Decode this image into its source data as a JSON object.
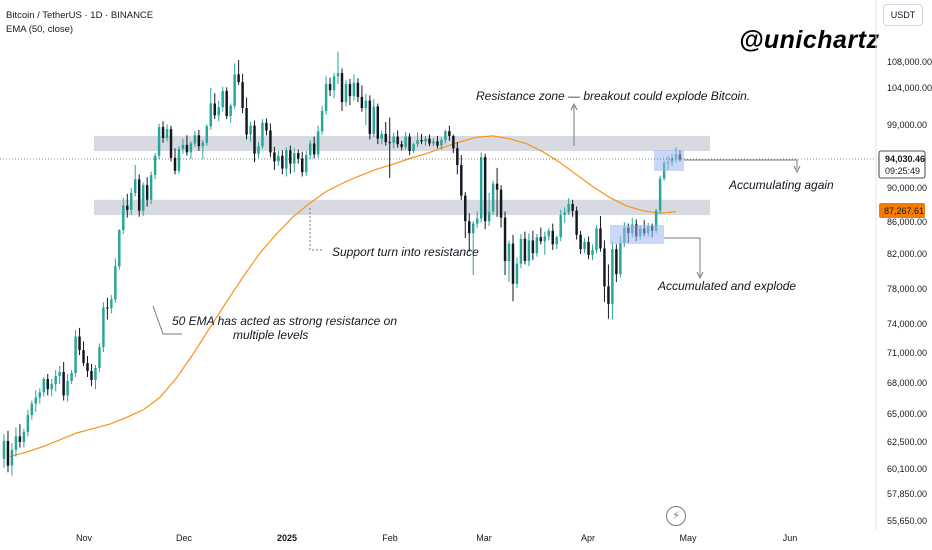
{
  "header": {
    "symbol_line": "Bitcoin / TetherUS · 1D · BINANCE",
    "indicator_line": "EMA (50, close)"
  },
  "watermark": "@unichartz",
  "currency_button": "USDT",
  "price_labels": {
    "last_price": "94,030.46",
    "countdown": "09:25:49",
    "ema_value": "87,267.61"
  },
  "colors": {
    "up": "#26a69a",
    "down": "#131722",
    "ema": "#f7931a",
    "zone": "#d1d4dc",
    "highlight_box": "#9fb6f2",
    "ema_label_bg": "#f57c00"
  },
  "annotations": {
    "resistance_zone": "Resistance zone — breakout could explode Bitcoin.",
    "accumulating_again": "Accumulating again",
    "support_turn": "Support turn into resistance",
    "ema_note_line1": "50 EMA has acted as strong resistance on",
    "ema_note_line2": "multiple levels",
    "accumulated_explode": "Accumulated and explode"
  },
  "chart_data": {
    "type": "candlestick",
    "title": "Bitcoin / TetherUS · 1D · BINANCE",
    "y_scale": "log",
    "ylim": [
      55650,
      115000
    ],
    "x_ticks": [
      "Nov",
      "Dec",
      "2025",
      "Feb",
      "Mar",
      "Apr",
      "May",
      "Jun"
    ],
    "y_ticks": [
      "108,000.00",
      "104,000.00",
      "99,000.00",
      "90,000.00",
      "86,000.00",
      "82,000.00",
      "78,000.00",
      "74,000.00",
      "71,000.00",
      "68,000.00",
      "65,000.00",
      "62,500.00",
      "60,100.00",
      "57,850.00",
      "55,650.00"
    ],
    "zones": [
      {
        "name": "resistance",
        "low": 95200,
        "high": 97400
      },
      {
        "name": "support-turned-resistance",
        "low": 86800,
        "high": 88600
      }
    ],
    "last_price": 94030.46,
    "ema50_last": 87267.61,
    "candles": [
      {
        "o": 61000,
        "h": 63200,
        "l": 60200,
        "c": 62600
      },
      {
        "o": 62600,
        "h": 63500,
        "l": 59800,
        "c": 60400
      },
      {
        "o": 60400,
        "h": 62400,
        "l": 59500,
        "c": 61800
      },
      {
        "o": 61800,
        "h": 63800,
        "l": 61200,
        "c": 63000
      },
      {
        "o": 63000,
        "h": 64100,
        "l": 62000,
        "c": 62500
      },
      {
        "o": 62500,
        "h": 63700,
        "l": 62000,
        "c": 63400
      },
      {
        "o": 63400,
        "h": 65400,
        "l": 63000,
        "c": 64900
      },
      {
        "o": 64900,
        "h": 66300,
        "l": 64500,
        "c": 66000
      },
      {
        "o": 66000,
        "h": 67300,
        "l": 65200,
        "c": 66600
      },
      {
        "o": 66600,
        "h": 67500,
        "l": 66000,
        "c": 67100
      },
      {
        "o": 67100,
        "h": 68600,
        "l": 66700,
        "c": 68400
      },
      {
        "o": 68400,
        "h": 68900,
        "l": 66800,
        "c": 67400
      },
      {
        "o": 67400,
        "h": 68400,
        "l": 66700,
        "c": 67900
      },
      {
        "o": 67900,
        "h": 69300,
        "l": 67200,
        "c": 68700
      },
      {
        "o": 68700,
        "h": 69700,
        "l": 67900,
        "c": 69100
      },
      {
        "o": 69100,
        "h": 70100,
        "l": 66300,
        "c": 66800
      },
      {
        "o": 66800,
        "h": 68900,
        "l": 66200,
        "c": 68200
      },
      {
        "o": 68200,
        "h": 69300,
        "l": 67900,
        "c": 69000
      },
      {
        "o": 69000,
        "h": 73400,
        "l": 68600,
        "c": 72700
      },
      {
        "o": 72700,
        "h": 73600,
        "l": 70800,
        "c": 71300
      },
      {
        "o": 71300,
        "h": 72200,
        "l": 69700,
        "c": 70000
      },
      {
        "o": 70000,
        "h": 70700,
        "l": 68600,
        "c": 69200
      },
      {
        "o": 69200,
        "h": 69900,
        "l": 67700,
        "c": 68300
      },
      {
        "o": 68300,
        "h": 69800,
        "l": 67400,
        "c": 69500
      },
      {
        "o": 69500,
        "h": 72000,
        "l": 69100,
        "c": 71600
      },
      {
        "o": 71600,
        "h": 76500,
        "l": 71100,
        "c": 75900
      },
      {
        "o": 75900,
        "h": 77000,
        "l": 74500,
        "c": 75800
      },
      {
        "o": 75800,
        "h": 77300,
        "l": 75200,
        "c": 76800
      },
      {
        "o": 76800,
        "h": 81500,
        "l": 76400,
        "c": 80600
      },
      {
        "o": 80600,
        "h": 85100,
        "l": 80200,
        "c": 85000
      },
      {
        "o": 85000,
        "h": 88800,
        "l": 84500,
        "c": 87900
      },
      {
        "o": 87900,
        "h": 89300,
        "l": 86500,
        "c": 87400
      },
      {
        "o": 87400,
        "h": 90000,
        "l": 86800,
        "c": 89400
      },
      {
        "o": 89400,
        "h": 93200,
        "l": 89000,
        "c": 91200
      },
      {
        "o": 91200,
        "h": 91900,
        "l": 86600,
        "c": 87300
      },
      {
        "o": 87300,
        "h": 90800,
        "l": 86700,
        "c": 90400
      },
      {
        "o": 90400,
        "h": 91500,
        "l": 87800,
        "c": 88600
      },
      {
        "o": 88600,
        "h": 92300,
        "l": 88100,
        "c": 91800
      },
      {
        "o": 91800,
        "h": 94900,
        "l": 91200,
        "c": 94500
      },
      {
        "o": 94500,
        "h": 99200,
        "l": 94000,
        "c": 98700
      },
      {
        "o": 98700,
        "h": 99500,
        "l": 96400,
        "c": 97100
      },
      {
        "o": 97100,
        "h": 99100,
        "l": 96600,
        "c": 98400
      },
      {
        "o": 98400,
        "h": 98900,
        "l": 93700,
        "c": 94200
      },
      {
        "o": 94200,
        "h": 95600,
        "l": 91900,
        "c": 92400
      },
      {
        "o": 92400,
        "h": 95900,
        "l": 92000,
        "c": 95500
      },
      {
        "o": 95500,
        "h": 97000,
        "l": 94800,
        "c": 96100
      },
      {
        "o": 96100,
        "h": 97500,
        "l": 94500,
        "c": 95000
      },
      {
        "o": 95000,
        "h": 96600,
        "l": 94000,
        "c": 96300
      },
      {
        "o": 96300,
        "h": 98100,
        "l": 95800,
        "c": 97500
      },
      {
        "o": 97500,
        "h": 98300,
        "l": 95200,
        "c": 95900
      },
      {
        "o": 95900,
        "h": 96800,
        "l": 94000,
        "c": 96400
      },
      {
        "o": 96400,
        "h": 99100,
        "l": 96000,
        "c": 98800
      },
      {
        "o": 98800,
        "h": 104000,
        "l": 98300,
        "c": 101900
      },
      {
        "o": 101900,
        "h": 103300,
        "l": 99800,
        "c": 100300
      },
      {
        "o": 100300,
        "h": 102300,
        "l": 99500,
        "c": 101400
      },
      {
        "o": 101400,
        "h": 104200,
        "l": 100800,
        "c": 103600
      },
      {
        "o": 103600,
        "h": 104100,
        "l": 99800,
        "c": 100200
      },
      {
        "o": 100200,
        "h": 101900,
        "l": 99300,
        "c": 101600
      },
      {
        "o": 101600,
        "h": 107800,
        "l": 101200,
        "c": 106100
      },
      {
        "o": 106100,
        "h": 108300,
        "l": 104500,
        "c": 104900
      },
      {
        "o": 104900,
        "h": 106200,
        "l": 100600,
        "c": 101300
      },
      {
        "o": 101300,
        "h": 102700,
        "l": 96900,
        "c": 97600
      },
      {
        "o": 97600,
        "h": 99400,
        "l": 96600,
        "c": 98900
      },
      {
        "o": 98900,
        "h": 99600,
        "l": 93600,
        "c": 94800
      },
      {
        "o": 94800,
        "h": 96500,
        "l": 94200,
        "c": 95900
      },
      {
        "o": 95900,
        "h": 99800,
        "l": 95500,
        "c": 99300
      },
      {
        "o": 99300,
        "h": 99900,
        "l": 97500,
        "c": 98200
      },
      {
        "o": 98200,
        "h": 99200,
        "l": 94300,
        "c": 95000
      },
      {
        "o": 95000,
        "h": 95800,
        "l": 92500,
        "c": 93700
      },
      {
        "o": 93700,
        "h": 95200,
        "l": 93100,
        "c": 94500
      },
      {
        "o": 94500,
        "h": 95300,
        "l": 91900,
        "c": 92700
      },
      {
        "o": 92700,
        "h": 95700,
        "l": 91600,
        "c": 95300
      },
      {
        "o": 95300,
        "h": 96000,
        "l": 92000,
        "c": 93400
      },
      {
        "o": 93400,
        "h": 95600,
        "l": 92200,
        "c": 94900
      },
      {
        "o": 94900,
        "h": 95400,
        "l": 93400,
        "c": 94100
      },
      {
        "o": 94100,
        "h": 95100,
        "l": 91600,
        "c": 92200
      },
      {
        "o": 92200,
        "h": 95200,
        "l": 91700,
        "c": 94600
      },
      {
        "o": 94600,
        "h": 96800,
        "l": 94000,
        "c": 96300
      },
      {
        "o": 96300,
        "h": 97300,
        "l": 94100,
        "c": 94700
      },
      {
        "o": 94700,
        "h": 98900,
        "l": 94200,
        "c": 98100
      },
      {
        "o": 98100,
        "h": 101600,
        "l": 97600,
        "c": 100900
      },
      {
        "o": 100900,
        "h": 105800,
        "l": 100400,
        "c": 104600
      },
      {
        "o": 104600,
        "h": 105600,
        "l": 102900,
        "c": 103700
      },
      {
        "o": 103700,
        "h": 106300,
        "l": 102600,
        "c": 105800
      },
      {
        "o": 105800,
        "h": 109600,
        "l": 104600,
        "c": 106300
      },
      {
        "o": 106300,
        "h": 107000,
        "l": 100900,
        "c": 102100
      },
      {
        "o": 102100,
        "h": 105200,
        "l": 101500,
        "c": 104600
      },
      {
        "o": 104600,
        "h": 105400,
        "l": 101700,
        "c": 102900
      },
      {
        "o": 102900,
        "h": 106100,
        "l": 102300,
        "c": 104800
      },
      {
        "o": 104800,
        "h": 105500,
        "l": 102100,
        "c": 102800
      },
      {
        "o": 102800,
        "h": 104400,
        "l": 100800,
        "c": 101300
      },
      {
        "o": 101300,
        "h": 103200,
        "l": 99000,
        "c": 102300
      },
      {
        "o": 102300,
        "h": 103000,
        "l": 96900,
        "c": 97700
      },
      {
        "o": 97700,
        "h": 102500,
        "l": 97200,
        "c": 101500
      },
      {
        "o": 101500,
        "h": 101900,
        "l": 96200,
        "c": 97000
      },
      {
        "o": 97000,
        "h": 98200,
        "l": 96200,
        "c": 97700
      },
      {
        "o": 97700,
        "h": 99400,
        "l": 96000,
        "c": 96500
      },
      {
        "o": 96500,
        "h": 100000,
        "l": 91400,
        "c": 96400
      },
      {
        "o": 96400,
        "h": 97900,
        "l": 95600,
        "c": 97300
      },
      {
        "o": 97300,
        "h": 98200,
        "l": 95700,
        "c": 96200
      },
      {
        "o": 96200,
        "h": 96700,
        "l": 95300,
        "c": 95800
      },
      {
        "o": 95800,
        "h": 98000,
        "l": 95400,
        "c": 97300
      },
      {
        "o": 97300,
        "h": 97800,
        "l": 94600,
        "c": 95200
      },
      {
        "o": 95200,
        "h": 96400,
        "l": 94900,
        "c": 96200
      },
      {
        "o": 96200,
        "h": 97900,
        "l": 95800,
        "c": 96800
      },
      {
        "o": 96800,
        "h": 97700,
        "l": 96200,
        "c": 96600
      },
      {
        "o": 96600,
        "h": 97400,
        "l": 96000,
        "c": 97000
      },
      {
        "o": 97000,
        "h": 97600,
        "l": 95900,
        "c": 96300
      },
      {
        "o": 96300,
        "h": 97100,
        "l": 95900,
        "c": 96600
      },
      {
        "o": 96600,
        "h": 97400,
        "l": 95600,
        "c": 96000
      },
      {
        "o": 96000,
        "h": 97200,
        "l": 95400,
        "c": 96800
      },
      {
        "o": 96800,
        "h": 98300,
        "l": 96300,
        "c": 98100
      },
      {
        "o": 98100,
        "h": 98900,
        "l": 96700,
        "c": 97400
      },
      {
        "o": 97400,
        "h": 97600,
        "l": 94900,
        "c": 95600
      },
      {
        "o": 95600,
        "h": 96500,
        "l": 91900,
        "c": 93200
      },
      {
        "o": 93200,
        "h": 94600,
        "l": 88600,
        "c": 89100
      },
      {
        "o": 89100,
        "h": 89500,
        "l": 84000,
        "c": 86100
      },
      {
        "o": 86100,
        "h": 87000,
        "l": 82300,
        "c": 84600
      },
      {
        "o": 84600,
        "h": 86100,
        "l": 79600,
        "c": 85800
      },
      {
        "o": 85800,
        "h": 87200,
        "l": 85300,
        "c": 86400
      },
      {
        "o": 86400,
        "h": 95000,
        "l": 85900,
        "c": 94300
      },
      {
        "o": 94300,
        "h": 94800,
        "l": 85100,
        "c": 86100
      },
      {
        "o": 86100,
        "h": 89400,
        "l": 85500,
        "c": 87200
      },
      {
        "o": 87200,
        "h": 91000,
        "l": 86800,
        "c": 90600
      },
      {
        "o": 90600,
        "h": 92800,
        "l": 86600,
        "c": 89800
      },
      {
        "o": 89800,
        "h": 90400,
        "l": 85300,
        "c": 86500
      },
      {
        "o": 86500,
        "h": 87200,
        "l": 79600,
        "c": 81200
      },
      {
        "o": 81200,
        "h": 83700,
        "l": 78800,
        "c": 83300
      },
      {
        "o": 83300,
        "h": 84400,
        "l": 76600,
        "c": 78600
      },
      {
        "o": 78600,
        "h": 81600,
        "l": 78100,
        "c": 80900
      },
      {
        "o": 80900,
        "h": 84500,
        "l": 80400,
        "c": 83900
      },
      {
        "o": 83900,
        "h": 84800,
        "l": 80800,
        "c": 81200
      },
      {
        "o": 81200,
        "h": 84600,
        "l": 80600,
        "c": 83700
      },
      {
        "o": 83700,
        "h": 84900,
        "l": 81300,
        "c": 82100
      },
      {
        "o": 82100,
        "h": 84500,
        "l": 81700,
        "c": 84100
      },
      {
        "o": 84100,
        "h": 85300,
        "l": 83200,
        "c": 83600
      },
      {
        "o": 83600,
        "h": 84800,
        "l": 81900,
        "c": 84200
      },
      {
        "o": 84200,
        "h": 85200,
        "l": 83700,
        "c": 84900
      },
      {
        "o": 84900,
        "h": 85800,
        "l": 82500,
        "c": 83200
      },
      {
        "o": 83200,
        "h": 84300,
        "l": 82600,
        "c": 84100
      },
      {
        "o": 84100,
        "h": 87400,
        "l": 83600,
        "c": 86800
      },
      {
        "o": 86800,
        "h": 87700,
        "l": 85900,
        "c": 87100
      },
      {
        "o": 87100,
        "h": 88800,
        "l": 86800,
        "c": 88100
      },
      {
        "o": 88100,
        "h": 88600,
        "l": 86600,
        "c": 87300
      },
      {
        "o": 87300,
        "h": 87800,
        "l": 83800,
        "c": 84400
      },
      {
        "o": 84400,
        "h": 84900,
        "l": 82000,
        "c": 82600
      },
      {
        "o": 82600,
        "h": 84000,
        "l": 82100,
        "c": 83500
      },
      {
        "o": 83500,
        "h": 84200,
        "l": 81400,
        "c": 81900
      },
      {
        "o": 81900,
        "h": 83200,
        "l": 81300,
        "c": 82500
      },
      {
        "o": 82500,
        "h": 85600,
        "l": 82100,
        "c": 85200
      },
      {
        "o": 85200,
        "h": 86700,
        "l": 82300,
        "c": 82700
      },
      {
        "o": 82700,
        "h": 83700,
        "l": 76500,
        "c": 78300
      },
      {
        "o": 78300,
        "h": 80800,
        "l": 74600,
        "c": 76300
      },
      {
        "o": 76300,
        "h": 83500,
        "l": 74500,
        "c": 82600
      },
      {
        "o": 82600,
        "h": 83200,
        "l": 78800,
        "c": 79700
      },
      {
        "o": 79700,
        "h": 84200,
        "l": 79300,
        "c": 83400
      },
      {
        "o": 83400,
        "h": 86000,
        "l": 82900,
        "c": 85300
      },
      {
        "o": 85300,
        "h": 85800,
        "l": 83400,
        "c": 84600
      },
      {
        "o": 84600,
        "h": 86500,
        "l": 84100,
        "c": 85700
      },
      {
        "o": 85700,
        "h": 86300,
        "l": 83600,
        "c": 84200
      },
      {
        "o": 84200,
        "h": 85600,
        "l": 83800,
        "c": 85200
      },
      {
        "o": 85200,
        "h": 86200,
        "l": 84200,
        "c": 84600
      },
      {
        "o": 84600,
        "h": 85900,
        "l": 84200,
        "c": 85500
      },
      {
        "o": 85500,
        "h": 85800,
        "l": 84100,
        "c": 84900
      },
      {
        "o": 84900,
        "h": 87500,
        "l": 84600,
        "c": 87300
      },
      {
        "o": 87300,
        "h": 91700,
        "l": 87000,
        "c": 91300
      },
      {
        "o": 91300,
        "h": 93800,
        "l": 91000,
        "c": 93500
      },
      {
        "o": 93500,
        "h": 94500,
        "l": 92500,
        "c": 93600
      },
      {
        "o": 93600,
        "h": 94800,
        "l": 93000,
        "c": 94200
      },
      {
        "o": 94200,
        "h": 95700,
        "l": 93500,
        "c": 94700
      },
      {
        "o": 94700,
        "h": 95300,
        "l": 93700,
        "c": 94000
      }
    ],
    "ema50": [
      61200,
      61600,
      62100,
      62700,
      63300,
      63700,
      64100,
      64700,
      65400,
      66600,
      68500,
      70900,
      73600,
      76500,
      79400,
      82100,
      84500,
      86600,
      88200,
      89600,
      90700,
      91700,
      92600,
      93300,
      94100,
      94800,
      95700,
      96500,
      97200,
      97400,
      97000,
      96300,
      95100,
      93600,
      91900,
      90200,
      88900,
      87900,
      87300,
      87000,
      87200
    ]
  }
}
